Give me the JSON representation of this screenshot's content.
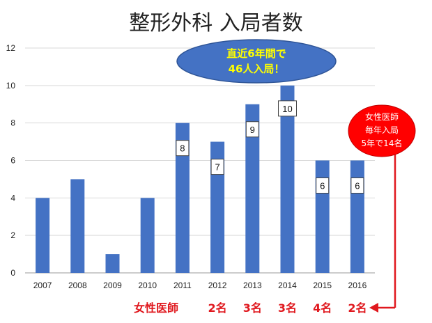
{
  "title": "整形外科 入局者数",
  "chart_data": {
    "type": "bar",
    "categories": [
      "2007",
      "2008",
      "2009",
      "2010",
      "2011",
      "2012",
      "2013",
      "2014",
      "2015",
      "2016"
    ],
    "values": [
      4,
      5,
      1,
      4,
      8,
      7,
      9,
      10,
      6,
      6
    ],
    "data_labels": {
      "2011": "8",
      "2012": "7",
      "2013": "9",
      "2014": "10",
      "2015": "6",
      "2016": "6"
    },
    "ylim": [
      0,
      12
    ],
    "yticks": [
      0,
      2,
      4,
      6,
      8,
      10,
      12
    ],
    "grid": true,
    "bar_color": "#4472c4"
  },
  "callout": {
    "line1": "直近6年間で",
    "line2": "46人入局！",
    "fill": "#4472c4",
    "text_color": "#ffff00"
  },
  "red_callout": {
    "line1": "女性医師",
    "line2": "毎年入局",
    "line3": "5年で14名",
    "fill": "#ff0000"
  },
  "female_row": {
    "label": "女性医師",
    "items": [
      {
        "year": "2012",
        "text": "2名"
      },
      {
        "year": "2013",
        "text": "3名"
      },
      {
        "year": "2014",
        "text": "3名"
      },
      {
        "year": "2015",
        "text": "4名"
      },
      {
        "year": "2016",
        "text": "2名"
      }
    ],
    "color": "#e0181e"
  }
}
